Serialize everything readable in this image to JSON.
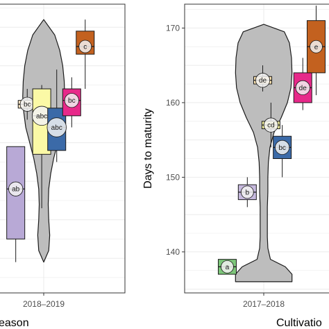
{
  "chart_data": [
    {
      "type": "boxplot",
      "panel": "left",
      "xlabel": "eason",
      "ylabel": "",
      "x_ticks": [
        "2018–2019"
      ],
      "ylim": [
        135.5,
        173
      ],
      "grid": true,
      "violin": {
        "min": 139.5,
        "max": 171,
        "profile": [
          [
            139.5,
            0.0
          ],
          [
            141,
            0.1
          ],
          [
            143,
            0.12
          ],
          [
            145,
            0.1
          ],
          [
            147,
            0.09
          ],
          [
            149,
            0.1
          ],
          [
            151,
            0.14
          ],
          [
            153,
            0.2
          ],
          [
            155,
            0.28
          ],
          [
            157,
            0.36
          ],
          [
            159,
            0.4
          ],
          [
            161,
            0.42
          ],
          [
            163,
            0.41
          ],
          [
            165,
            0.38
          ],
          [
            167,
            0.32
          ],
          [
            169,
            0.22
          ],
          [
            171,
            0.0
          ]
        ]
      },
      "boxes": [
        {
          "label": "ab",
          "color": "#b8a9d6",
          "q1": 142.5,
          "median": 149,
          "q3": 154.5,
          "whisker_low": 139.5,
          "whisker_high": 154.5,
          "offset": -0.56
        },
        {
          "label": "bc",
          "color": "#fbe7c6",
          "q1": 159.5,
          "median": 160,
          "q3": 160.5,
          "whisker_low": 158,
          "whisker_high": 162,
          "offset": -0.33
        },
        {
          "label": "abc",
          "color": "#fbf9a6",
          "q1": 153.5,
          "median": 158.5,
          "q3": 162,
          "whisker_low": 146.5,
          "whisker_high": 162.5,
          "offset": -0.04
        },
        {
          "label": "abc",
          "color": "#3b6aa8",
          "q1": 154,
          "median": 157,
          "q3": 159.5,
          "whisker_low": 152.5,
          "whisker_high": 164.5,
          "offset": 0.26
        },
        {
          "label": "bc",
          "color": "#e7298a",
          "q1": 158.5,
          "median": 160.5,
          "q3": 162,
          "whisker_low": 157,
          "whisker_high": 163.5,
          "offset": 0.56
        },
        {
          "label": "c",
          "color": "#c3611f",
          "q1": 166.5,
          "median": 167.5,
          "q3": 169.5,
          "whisker_low": 162,
          "whisker_high": 171,
          "offset": 0.83
        }
      ]
    },
    {
      "type": "boxplot",
      "panel": "right",
      "xlabel": "Cultivatio",
      "ylabel": "Days to maturity",
      "x_ticks": [
        "2017–2018"
      ],
      "y_ticks": [
        140,
        150,
        160,
        170
      ],
      "ylim": [
        134.5,
        173.2
      ],
      "grid": true,
      "violin": {
        "min": 136,
        "max": 170.5,
        "profile": [
          [
            136,
            0.55
          ],
          [
            137,
            0.55
          ],
          [
            138,
            0.42
          ],
          [
            139,
            0.13
          ],
          [
            140.5,
            0.08
          ],
          [
            142,
            0.07
          ],
          [
            144,
            0.07
          ],
          [
            146,
            0.07
          ],
          [
            148,
            0.08
          ],
          [
            150,
            0.08
          ],
          [
            152,
            0.09
          ],
          [
            154,
            0.12
          ],
          [
            156,
            0.2
          ],
          [
            158,
            0.34
          ],
          [
            160,
            0.46
          ],
          [
            162,
            0.53
          ],
          [
            164,
            0.55
          ],
          [
            166,
            0.54
          ],
          [
            168,
            0.5
          ],
          [
            169.5,
            0.4
          ],
          [
            170.5,
            0.0
          ]
        ]
      },
      "boxes": [
        {
          "label": "a",
          "color": "#7dc77a",
          "q1": 137,
          "median": 138,
          "q3": 139,
          "whisker_low": 137,
          "whisker_high": 139,
          "offset": -0.71
        },
        {
          "label": "b",
          "color": "#c6b9de",
          "q1": 147,
          "median": 148,
          "q3": 149,
          "whisker_low": 146,
          "whisker_high": 150,
          "offset": -0.32
        },
        {
          "label": "de",
          "color": "#fbe2b0",
          "q1": 162.5,
          "median": 163,
          "q3": 163.5,
          "whisker_low": 161.5,
          "whisker_high": 165,
          "offset": -0.02
        },
        {
          "label": "cd",
          "color": "#f4f2a0",
          "q1": 156.5,
          "median": 157,
          "q3": 157.5,
          "whisker_low": 154,
          "whisker_high": 160,
          "offset": 0.14
        },
        {
          "label": "bc",
          "color": "#3b6aa8",
          "q1": 152.5,
          "median": 154,
          "q3": 155.5,
          "whisker_low": 150,
          "whisker_high": 157,
          "offset": 0.36
        },
        {
          "label": "de",
          "color": "#e7298a",
          "q1": 160,
          "median": 162,
          "q3": 164,
          "whisker_low": 159,
          "whisker_high": 166,
          "offset": 0.76
        },
        {
          "label": "e",
          "color": "#c3611f",
          "q1": 164,
          "median": 167.5,
          "q3": 171,
          "whisker_low": 161,
          "whisker_high": 173,
          "offset": 1.02
        }
      ]
    }
  ]
}
